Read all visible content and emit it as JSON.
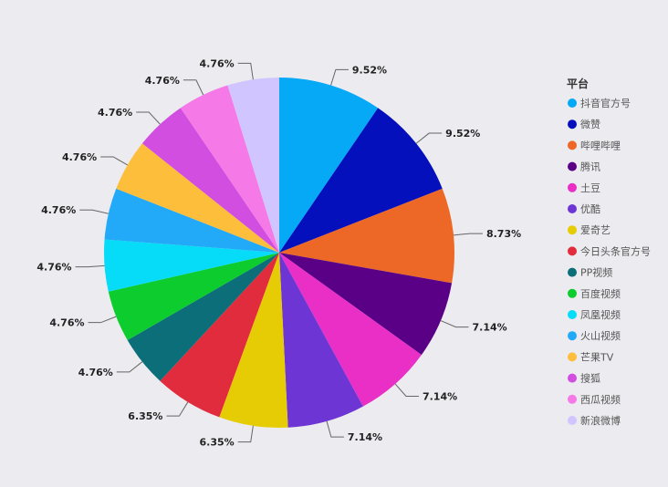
{
  "chart_data": {
    "type": "pie",
    "title": "",
    "legend": {
      "title": "平台",
      "placement": "right"
    },
    "series": [
      {
        "name": "抖音官方号",
        "value_label": "9.52%",
        "value": 9.52,
        "color": "#05a9f5"
      },
      {
        "name": "微赞",
        "value_label": "9.52%",
        "value": 9.52,
        "color": "#0510bd"
      },
      {
        "name": "哔哩哔哩",
        "value_label": "8.73%",
        "value": 8.73,
        "color": "#ed6826"
      },
      {
        "name": "腾讯",
        "value_label": "7.14%",
        "value": 7.14,
        "color": "#590087"
      },
      {
        "name": "土豆",
        "value_label": "7.14%",
        "value": 7.14,
        "color": "#e92fc6"
      },
      {
        "name": "优酷",
        "value_label": "7.14%",
        "value": 7.14,
        "color": "#6d36d4"
      },
      {
        "name": "爱奇艺",
        "value_label": "6.35%",
        "value": 6.35,
        "color": "#e6cc05"
      },
      {
        "name": "今日头条官方号",
        "value_label": "6.35%",
        "value": 6.35,
        "color": "#e12c3d"
      },
      {
        "name": "PP视频",
        "value_label": "4.76%",
        "value": 4.76,
        "color": "#0b6e79"
      },
      {
        "name": "百度视频",
        "value_label": "4.76%",
        "value": 4.76,
        "color": "#0dcc2e"
      },
      {
        "name": "凤凰视频",
        "value_label": "4.76%",
        "value": 4.76,
        "color": "#06dcf7"
      },
      {
        "name": "火山视频",
        "value_label": "4.76%",
        "value": 4.76,
        "color": "#22a9f7"
      },
      {
        "name": "芒果TV",
        "value_label": "4.76%",
        "value": 4.76,
        "color": "#fdbe3c"
      },
      {
        "name": "搜狐",
        "value_label": "4.76%",
        "value": 4.76,
        "color": "#d24ee0"
      },
      {
        "name": "西瓜视频",
        "value_label": "4.76%",
        "value": 4.76,
        "color": "#f57ae8"
      },
      {
        "name": "新浪微博",
        "value_label": "4.76%",
        "value": 4.76,
        "color": "#d1c5ff"
      }
    ]
  }
}
